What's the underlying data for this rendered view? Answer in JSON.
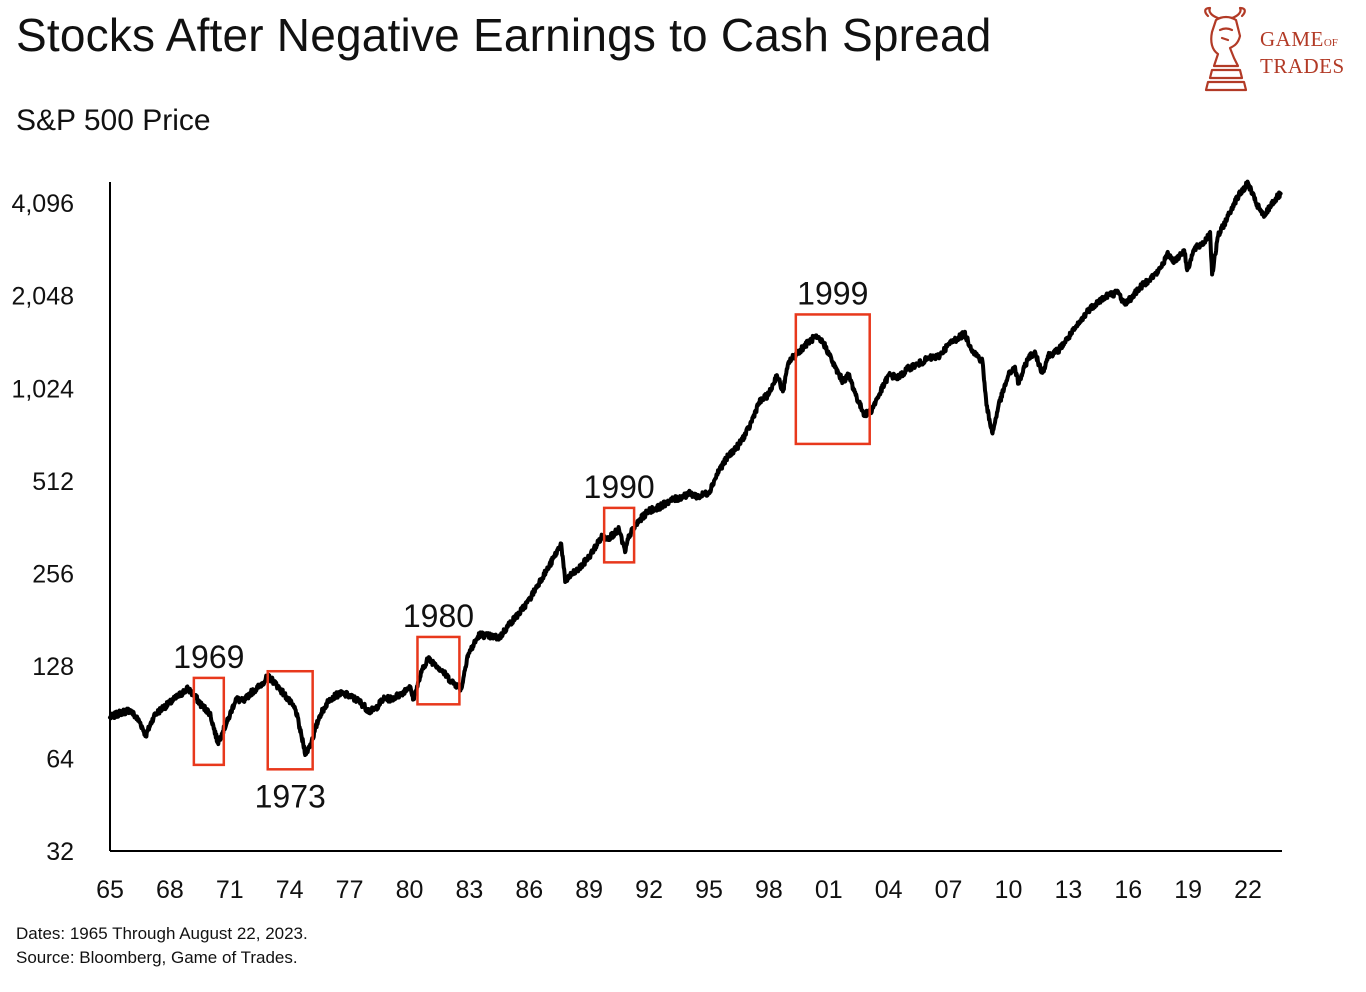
{
  "header": {
    "title": "Stocks After Negative Earnings to Cash Spread",
    "subtitle": "S&P 500 Price"
  },
  "logo": {
    "line1_main": "GAME",
    "line1_small": "OF",
    "line2": "TRADES",
    "color": "#b23a26",
    "icon": "bull-knight-chess-icon"
  },
  "footer": {
    "dates": "Dates: 1965 Through August 22, 2023.",
    "source": "Source: Bloomberg, Game of Trades."
  },
  "chart_data": {
    "type": "line",
    "title": "Stocks After Negative Earnings to Cash Spread",
    "subtitle": "S&P 500 Price",
    "yscale": "log2",
    "ylim": [
      32,
      4800
    ],
    "xlim": [
      1965,
      2023.7
    ],
    "yticks": [
      32,
      64,
      128,
      256,
      512,
      1024,
      2048,
      4096
    ],
    "ytick_labels": [
      "32",
      "64",
      "128",
      "256",
      "512",
      "1,024",
      "2,048",
      "4,096"
    ],
    "xticks": [
      1965,
      1968,
      1971,
      1974,
      1977,
      1980,
      1983,
      1986,
      1989,
      1992,
      1995,
      1998,
      2001,
      2004,
      2007,
      2010,
      2013,
      2016,
      2019,
      2022
    ],
    "xtick_labels": [
      "65",
      "68",
      "71",
      "74",
      "77",
      "80",
      "83",
      "86",
      "89",
      "92",
      "95",
      "98",
      "01",
      "04",
      "07",
      "10",
      "13",
      "16",
      "19",
      "22"
    ],
    "line_color": "#000000",
    "series": [
      {
        "name": "S&P 500",
        "x": [
          1965.0,
          1965.5,
          1966.0,
          1966.5,
          1966.8,
          1967.2,
          1967.6,
          1968.0,
          1968.4,
          1968.9,
          1969.2,
          1969.6,
          1970.0,
          1970.4,
          1970.6,
          1970.9,
          1971.3,
          1971.7,
          1972.0,
          1972.5,
          1972.9,
          1973.2,
          1973.6,
          1973.9,
          1974.3,
          1974.6,
          1974.8,
          1975.1,
          1975.5,
          1976.0,
          1976.5,
          1976.9,
          1977.5,
          1978.0,
          1978.3,
          1978.7,
          1979.1,
          1979.6,
          1980.0,
          1980.2,
          1980.6,
          1980.9,
          1981.3,
          1981.7,
          1982.1,
          1982.6,
          1982.9,
          1983.5,
          1984.0,
          1984.5,
          1985.0,
          1985.5,
          1986.0,
          1986.5,
          1987.0,
          1987.6,
          1987.8,
          1988.0,
          1988.5,
          1989.0,
          1989.6,
          1990.0,
          1990.5,
          1990.8,
          1991.0,
          1991.5,
          1992.0,
          1992.5,
          1993.0,
          1993.5,
          1994.0,
          1994.5,
          1995.0,
          1995.5,
          1996.0,
          1996.5,
          1997.0,
          1997.5,
          1998.0,
          1998.4,
          1998.7,
          1999.0,
          1999.5,
          2000.0,
          2000.3,
          2000.7,
          2001.0,
          2001.3,
          2001.7,
          2002.0,
          2002.5,
          2002.8,
          2003.1,
          2003.6,
          2004.0,
          2004.5,
          2005.0,
          2005.5,
          2006.0,
          2006.5,
          2007.0,
          2007.5,
          2007.8,
          2008.2,
          2008.7,
          2008.9,
          2009.2,
          2009.5,
          2010.0,
          2010.3,
          2010.5,
          2011.0,
          2011.3,
          2011.7,
          2012.0,
          2012.5,
          2013.0,
          2013.5,
          2014.0,
          2014.5,
          2015.0,
          2015.5,
          2015.8,
          2016.1,
          2016.5,
          2017.0,
          2017.5,
          2018.0,
          2018.3,
          2018.8,
          2018.95,
          2019.3,
          2019.8,
          2020.1,
          2020.2,
          2020.5,
          2020.9,
          2021.3,
          2021.6,
          2022.0,
          2022.4,
          2022.8,
          2023.2,
          2023.63
        ],
        "y": [
          87,
          90,
          92,
          84,
          76,
          88,
          93,
          97,
          102,
          108,
          103,
          95,
          90,
          72,
          77,
          85,
          100,
          98,
          104,
          110,
          118,
          114,
          106,
          100,
          92,
          75,
          66,
          73,
          88,
          100,
          104,
          103,
          98,
          91,
          93,
          100,
          100,
          104,
          110,
          100,
          122,
          135,
          130,
          122,
          114,
          108,
          138,
          162,
          160,
          158,
          175,
          190,
          210,
          240,
          270,
          320,
          240,
          250,
          265,
          290,
          335,
          335,
          355,
          300,
          340,
          380,
          410,
          420,
          440,
          450,
          465,
          455,
          470,
          555,
          620,
          670,
          760,
          920,
          980,
          1130,
          1000,
          1250,
          1350,
          1450,
          1500,
          1450,
          1330,
          1200,
          1080,
          1130,
          920,
          840,
          860,
          1000,
          1130,
          1110,
          1190,
          1230,
          1280,
          1300,
          1420,
          1500,
          1540,
          1360,
          1250,
          900,
          730,
          900,
          1130,
          1200,
          1060,
          1290,
          1340,
          1150,
          1310,
          1360,
          1500,
          1650,
          1840,
          1960,
          2060,
          2100,
          1930,
          2000,
          2150,
          2300,
          2450,
          2800,
          2650,
          2880,
          2480,
          2900,
          3050,
          3300,
          2400,
          3200,
          3600,
          4100,
          4400,
          4760,
          4100,
          3700,
          4100,
          4400
        ]
      }
    ],
    "annotations": [
      {
        "label": "1969",
        "x_start": 1969.2,
        "x_end": 1970.7,
        "y_low": 61,
        "y_high": 117,
        "label_position": "above"
      },
      {
        "label": "1973",
        "x_start": 1972.9,
        "x_end": 1975.15,
        "y_low": 59,
        "y_high": 123,
        "label_position": "below"
      },
      {
        "label": "1980",
        "x_start": 1980.4,
        "x_end": 1982.5,
        "y_low": 96,
        "y_high": 159,
        "label_position": "above"
      },
      {
        "label": "1990",
        "x_start": 1989.75,
        "x_end": 1991.25,
        "y_low": 278,
        "y_high": 418,
        "label_position": "above"
      },
      {
        "label": "1999",
        "x_start": 1999.35,
        "x_end": 2003.05,
        "y_low": 675,
        "y_high": 1780,
        "label_position": "above"
      }
    ],
    "annotation_color": "#e8381c"
  }
}
